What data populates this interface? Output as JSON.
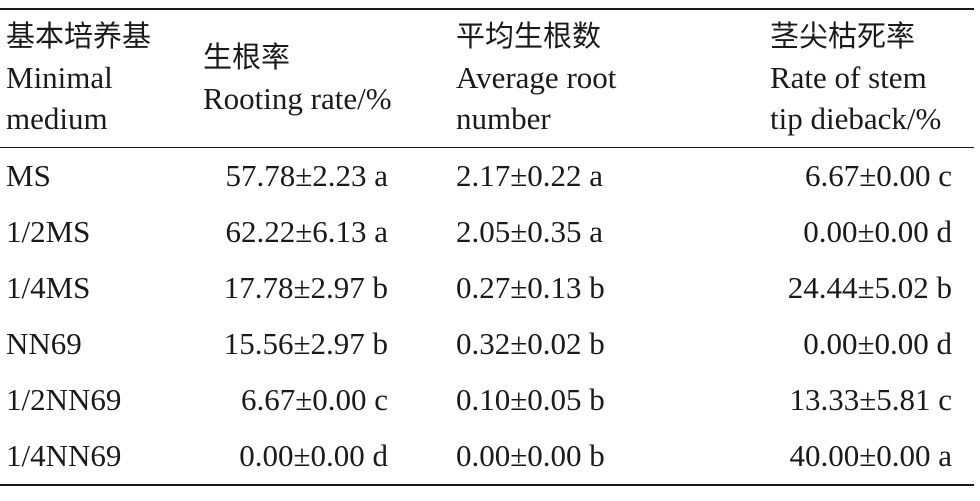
{
  "header": {
    "medium": {
      "zh": "基本培养基",
      "en_line1": "Minimal",
      "en_line2": "medium"
    },
    "rooting_rate": {
      "zh": "生根率",
      "en": "Rooting rate/%"
    },
    "root_number": {
      "zh": "平均生根数",
      "en_line1": "Average root",
      "en_line2": "number"
    },
    "dieback": {
      "zh": "茎尖枯死率",
      "en_line1": "Rate of stem",
      "en_line2": "tip dieback/%"
    }
  },
  "rows": [
    {
      "medium": "MS",
      "rooting_rate": "57.78±2.23 a",
      "root_number": "2.17±0.22 a",
      "dieback": "6.67±0.00 c"
    },
    {
      "medium": "1/2MS",
      "rooting_rate": "62.22±6.13 a",
      "root_number": "2.05±0.35 a",
      "dieback": "0.00±0.00 d"
    },
    {
      "medium": "1/4MS",
      "rooting_rate": "17.78±2.97 b",
      "root_number": "0.27±0.13 b",
      "dieback": "24.44±5.02 b"
    },
    {
      "medium": "NN69",
      "rooting_rate": "15.56±2.97 b",
      "root_number": "0.32±0.02 b",
      "dieback": "0.00±0.00 d"
    },
    {
      "medium": "1/2NN69",
      "rooting_rate": "6.67±0.00 c",
      "root_number": "0.10±0.05 b",
      "dieback": "13.33±5.81 c"
    },
    {
      "medium": "1/4NN69",
      "rooting_rate": "0.00±0.00 d",
      "root_number": "0.00±0.00 b",
      "dieback": "40.00±0.00 a"
    }
  ]
}
